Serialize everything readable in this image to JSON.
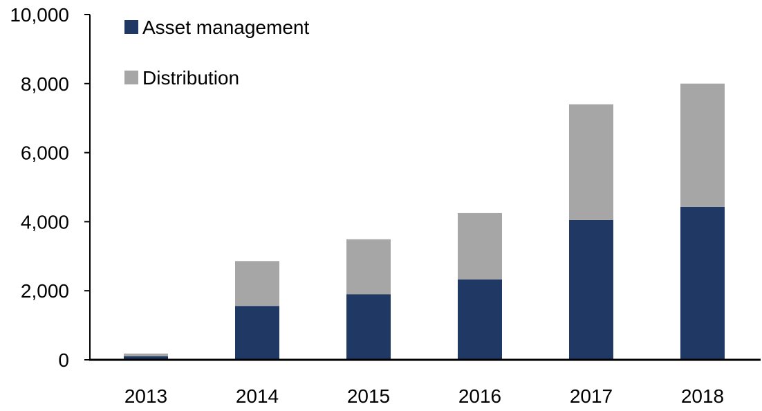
{
  "chart_data": {
    "type": "bar",
    "stacked": true,
    "categories": [
      "2013",
      "2014",
      "2015",
      "2016",
      "2017",
      "2018"
    ],
    "series": [
      {
        "name": "Asset management",
        "color": "#203864",
        "values": [
          100,
          1560,
          1900,
          2330,
          4050,
          4430
        ]
      },
      {
        "name": "Distribution",
        "color": "#a6a6a6",
        "values": [
          80,
          1300,
          1590,
          1920,
          3350,
          3570
        ]
      }
    ],
    "ylim": [
      0,
      10000
    ],
    "yticks": [
      "0",
      "2,000",
      "4,000",
      "6,000",
      "8,000",
      "10,000"
    ],
    "grid": false,
    "legend": "top-left"
  }
}
